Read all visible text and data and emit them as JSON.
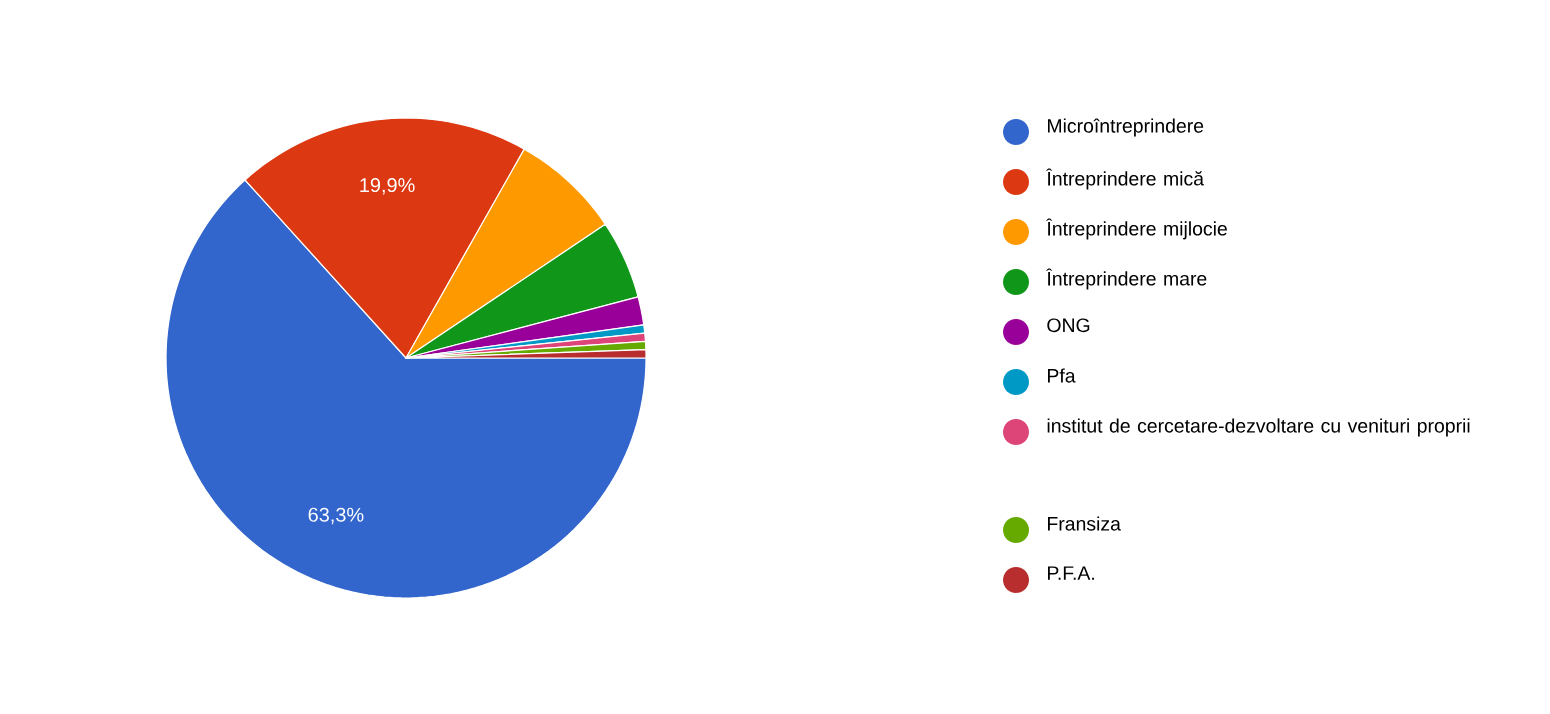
{
  "chart_data": {
    "type": "pie",
    "categories": [
      "Microîntreprindere",
      "Întreprindere mică",
      "Întreprindere mijlocie",
      "Întreprindere mare",
      "ONG",
      "Pfa",
      "institut de cercetare-dezvoltare cu venituri proprii",
      "Fransiza",
      "P.F.A."
    ],
    "values": [
      63.3,
      19.9,
      7.4,
      5.3,
      1.9,
      0.55,
      0.55,
      0.55,
      0.55
    ],
    "colors": [
      "#3366cc",
      "#dc3912",
      "#ff9900",
      "#109618",
      "#990099",
      "#0099c6",
      "#dd4477",
      "#66aa00",
      "#b82e2e"
    ],
    "value_labels": [
      "63,3%",
      "19,9%",
      null,
      null,
      null,
      null,
      null,
      null,
      null
    ],
    "legend": "right"
  }
}
